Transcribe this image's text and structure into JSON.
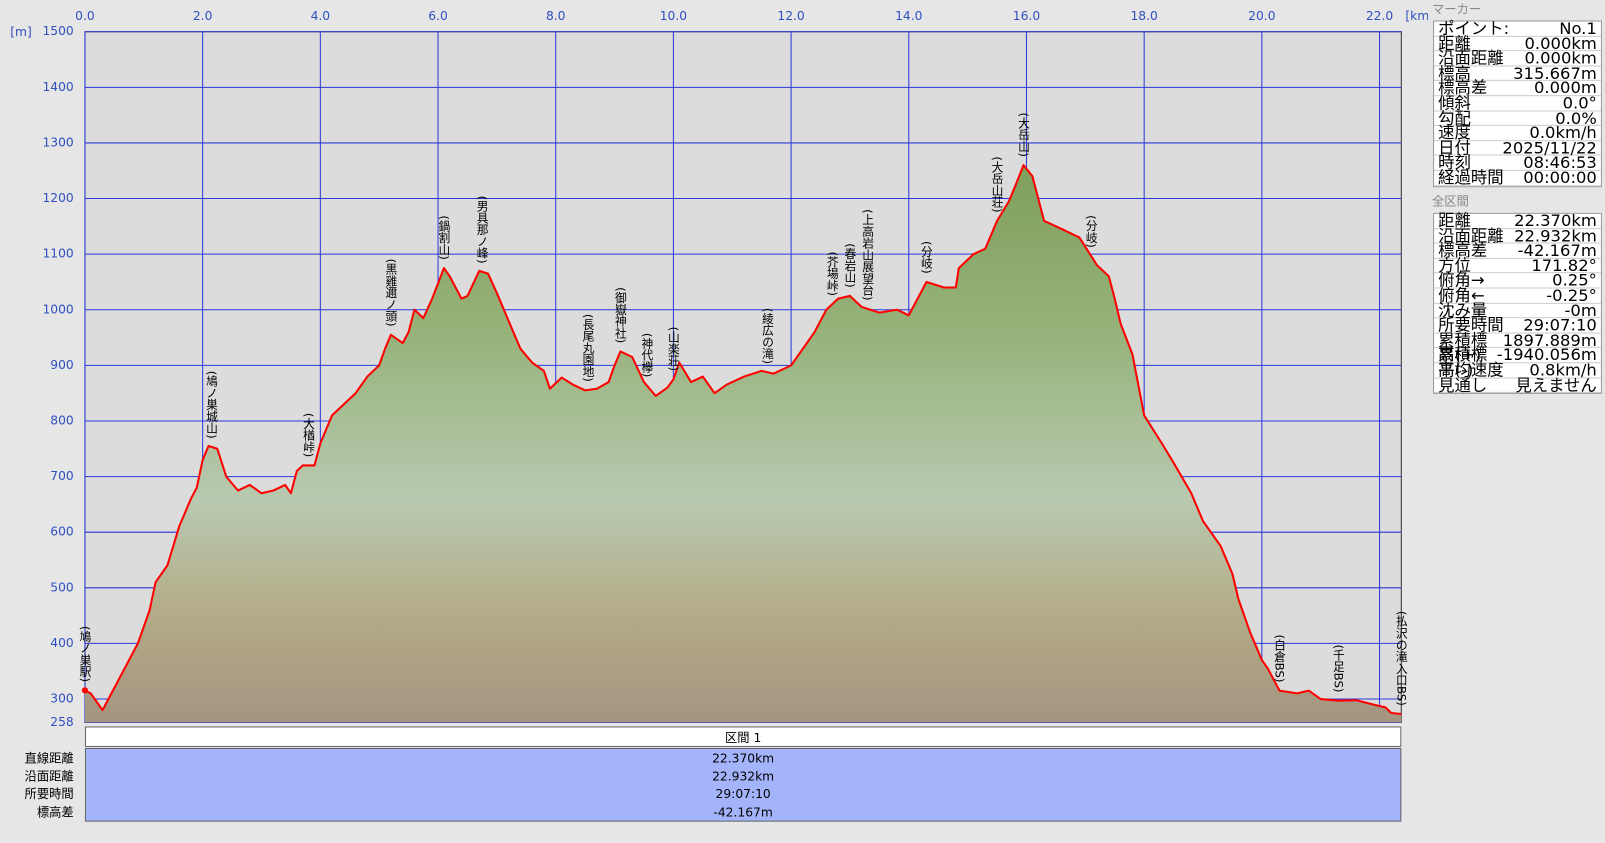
{
  "chart_data": {
    "type": "area",
    "x_unit": "[km]",
    "y_unit": "[m]",
    "x": [
      0,
      0.1,
      0.3,
      0.5,
      0.7,
      0.9,
      1.1,
      1.2,
      1.4,
      1.6,
      1.8,
      1.9,
      2.0,
      2.1,
      2.25,
      2.4,
      2.6,
      2.8,
      3.0,
      3.2,
      3.4,
      3.5,
      3.6,
      3.7,
      3.9,
      4.0,
      4.2,
      4.4,
      4.6,
      4.8,
      5.0,
      5.1,
      5.2,
      5.4,
      5.5,
      5.6,
      5.75,
      5.9,
      6.1,
      6.2,
      6.4,
      6.5,
      6.7,
      6.85,
      7.0,
      7.2,
      7.4,
      7.6,
      7.8,
      7.9,
      8.1,
      8.3,
      8.5,
      8.7,
      8.9,
      9.0,
      9.1,
      9.3,
      9.5,
      9.7,
      9.9,
      10.0,
      10.1,
      10.3,
      10.5,
      10.7,
      10.9,
      11.2,
      11.5,
      11.7,
      12.0,
      12.2,
      12.4,
      12.6,
      12.8,
      13.0,
      13.2,
      13.5,
      13.8,
      14.0,
      14.3,
      14.6,
      14.8,
      14.85,
      15.1,
      15.3,
      15.5,
      15.7,
      15.8,
      15.95,
      16.1,
      16.2,
      16.3,
      16.6,
      16.9,
      17.2,
      17.4,
      17.5,
      17.6,
      17.8,
      18.0,
      18.3,
      18.5,
      18.8,
      19.0,
      19.3,
      19.5,
      19.6,
      19.8,
      20.0,
      20.1,
      20.3,
      20.6,
      20.8,
      21.0,
      21.3,
      21.6,
      21.9,
      22.1,
      22.2,
      22.37
    ],
    "values": [
      315.667,
      310,
      280,
      320,
      360,
      400,
      460,
      510,
      540,
      610,
      660,
      680,
      730,
      755,
      750,
      700,
      675,
      685,
      670,
      675,
      685,
      670,
      710,
      720,
      720,
      760,
      810,
      830,
      850,
      880,
      900,
      930,
      955,
      940,
      960,
      1000,
      985,
      1020,
      1075,
      1060,
      1020,
      1025,
      1070,
      1065,
      1030,
      980,
      930,
      905,
      890,
      858,
      878,
      865,
      855,
      858,
      870,
      900,
      925,
      915,
      870,
      845,
      860,
      875,
      905,
      870,
      880,
      850,
      865,
      880,
      890,
      885,
      900,
      930,
      960,
      1000,
      1020,
      1025,
      1005,
      995,
      1000,
      990,
      1050,
      1040,
      1040,
      1075,
      1100,
      1110,
      1160,
      1195,
      1220,
      1260,
      1240,
      1200,
      1160,
      1145,
      1130,
      1080,
      1060,
      1020,
      975,
      920,
      810,
      760,
      725,
      670,
      620,
      575,
      525,
      480,
      420,
      370,
      355,
      315,
      310,
      315,
      300,
      297,
      298,
      290,
      285,
      275,
      273
    ],
    "color": "#ff0000",
    "xlim": [
      0,
      22.37
    ],
    "ylim": [
      258,
      1500
    ],
    "xticks": [
      {
        "value": 0,
        "label": "0.0"
      },
      {
        "value": 2,
        "label": "2.0"
      },
      {
        "value": 4,
        "label": "4.0"
      },
      {
        "value": 6,
        "label": "6.0"
      },
      {
        "value": 8,
        "label": "8.0"
      },
      {
        "value": 10,
        "label": "10.0"
      },
      {
        "value": 12,
        "label": "12.0"
      },
      {
        "value": 14,
        "label": "14.0"
      },
      {
        "value": 16,
        "label": "16.0"
      },
      {
        "value": 18,
        "label": "18.0"
      },
      {
        "value": 20,
        "label": "20.0"
      },
      {
        "value": 22,
        "label": "22.0"
      }
    ],
    "yticks": [
      258,
      300,
      400,
      500,
      600,
      700,
      800,
      900,
      1000,
      1100,
      1200,
      1300,
      1400,
      1500
    ],
    "grid": true,
    "landmarks": [
      {
        "label": "(鳩ノ巣駅)",
        "x": 0.0
      },
      {
        "label": "(鳩ノ巣城山)",
        "x": 2.15
      },
      {
        "label": "(大楢峠)",
        "x": 3.8
      },
      {
        "label": "(黒雞邇ノ頭)",
        "x": 5.2
      },
      {
        "label": "(鍋割山)",
        "x": 6.1
      },
      {
        "label": "(男具那ノ峰)",
        "x": 6.75
      },
      {
        "label": "(長尾丸園地)",
        "x": 8.55
      },
      {
        "label": "(御嶽神社)",
        "x": 9.1
      },
      {
        "label": "(神代欅)",
        "x": 9.55
      },
      {
        "label": "(山楽荘)",
        "x": 10.0
      },
      {
        "label": "(綾広の滝)",
        "x": 11.6
      },
      {
        "label": "(芥場峠)",
        "x": 12.7
      },
      {
        "label": "(春岩山)",
        "x": 13.0
      },
      {
        "label": "(上高岩山展望台)",
        "x": 13.3
      },
      {
        "label": "(分岐)",
        "x": 14.3
      },
      {
        "label": "(大岳山荘)",
        "x": 15.5
      },
      {
        "label": "(大岳山)",
        "x": 15.95
      },
      {
        "label": "(分岐)",
        "x": 17.1
      },
      {
        "label": "(白倉BS)",
        "x": 20.3
      },
      {
        "label": "(千足BS)",
        "x": 21.3
      },
      {
        "label": "(払沢の滝入口BS)",
        "x": 22.37
      }
    ]
  },
  "section_table": {
    "header": "区間 1",
    "rows": [
      [
        "直線距離",
        "22.370km"
      ],
      [
        "沿面距離",
        "22.932km"
      ],
      [
        "所要時間",
        "29:07:10"
      ],
      [
        "標高差",
        "-42.167m"
      ]
    ]
  },
  "marker_panel": {
    "title": "マーカー",
    "rows": [
      [
        "ポイント:",
        "No.1"
      ],
      [
        "距離",
        "0.000km"
      ],
      [
        "沿面距離",
        "0.000km"
      ],
      [
        "標高",
        "315.667m"
      ],
      [
        "標高差",
        "0.000m"
      ],
      [
        "傾斜",
        "0.0°"
      ],
      [
        "勾配",
        "0.0%"
      ],
      [
        "速度",
        "0.0km/h"
      ],
      [
        "日付",
        "2025/11/22"
      ],
      [
        "時刻",
        "08:46:53"
      ],
      [
        "経過時間",
        "00:00:00"
      ]
    ]
  },
  "total_panel": {
    "title": "全区間",
    "rows": [
      [
        "距離",
        "22.370km"
      ],
      [
        "沿面距離",
        "22.932km"
      ],
      [
        "標高差",
        "-42.167m"
      ],
      [
        "方位",
        "171.82°"
      ],
      [
        "俯角→",
        "0.25°"
      ],
      [
        "俯角←",
        "-0.25°"
      ],
      [
        "沈み量",
        "-0m"
      ],
      [
        "所要時間",
        "29:07:10"
      ],
      [
        "累積標高(+)",
        "1897.889m"
      ],
      [
        "累積標高(-)",
        "-1940.056m"
      ],
      [
        "平均速度",
        "0.8km/h"
      ],
      [
        "見通し",
        "見えません"
      ]
    ]
  }
}
